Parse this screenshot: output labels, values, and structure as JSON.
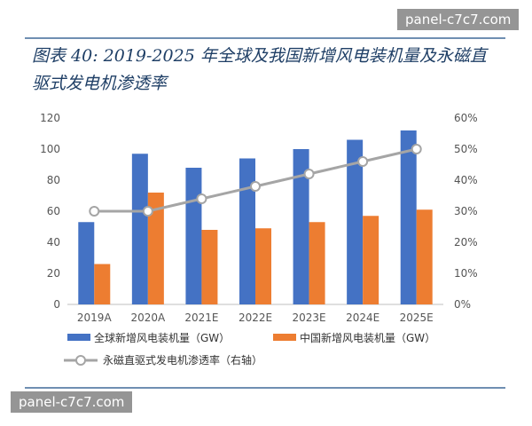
{
  "watermark": "panel-c7c7.com",
  "title": "图表 40: 2019-2025 年全球及我国新增风电装机量及永磁直驱式发电机渗透率",
  "chart_data": {
    "type": "bar",
    "categories": [
      "2019A",
      "2020A",
      "2021E",
      "2022E",
      "2023E",
      "2024E",
      "2025E"
    ],
    "series": [
      {
        "name": "全球新增风电装机量（GW）",
        "type": "bar",
        "axis": "left",
        "color": "#4472C4",
        "values": [
          53,
          97,
          88,
          94,
          100,
          106,
          112
        ]
      },
      {
        "name": "中国新增风电装机量（GW）",
        "type": "bar",
        "axis": "left",
        "color": "#ED7D31",
        "values": [
          26,
          72,
          48,
          49,
          53,
          57,
          61
        ]
      },
      {
        "name": "永磁直驱式发电机渗透率（右轴）",
        "type": "line",
        "axis": "right",
        "color": "#A5A5A5",
        "values": [
          30,
          30,
          34,
          38,
          42,
          46,
          50
        ]
      }
    ],
    "y_left": {
      "min": 0,
      "max": 120,
      "ticks": [
        "0",
        "20",
        "40",
        "60",
        "80",
        "100",
        "120"
      ]
    },
    "y_right": {
      "min": 0,
      "max": 60,
      "ticks": [
        "0%",
        "10%",
        "20%",
        "30%",
        "40%",
        "50%",
        "60%"
      ]
    },
    "grid": false,
    "legend_position": "bottom"
  }
}
